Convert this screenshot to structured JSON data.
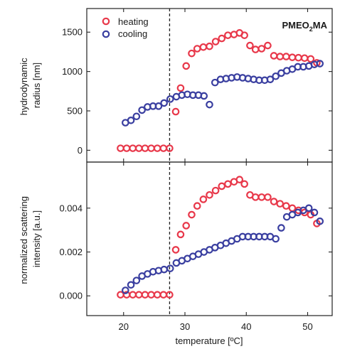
{
  "chart_data": [
    {
      "type": "scatter",
      "ylabel": [
        "hydrodynamic",
        "radius [nm]"
      ],
      "xlim": [
        14,
        54
      ],
      "ylim": [
        -150,
        1800
      ],
      "yticks": [
        0,
        500,
        1000,
        1500
      ],
      "ytick_labels": [
        "0",
        "500",
        "1000",
        "1500"
      ],
      "legend_location": "top-left",
      "annotation": {
        "prefix": "PMEO",
        "subscript": "2",
        "suffix": "MA"
      },
      "vline_x": 27.5,
      "series": [
        {
          "name": "heating",
          "color": "#e8384a",
          "x": [
            19.5,
            20.5,
            21.5,
            22.5,
            23.5,
            24.5,
            25.5,
            26.5,
            27.5,
            28.5,
            29.3,
            30.2,
            31.1,
            32.0,
            33.0,
            34.0,
            35.0,
            36.0,
            37.0,
            38.0,
            38.9,
            39.7,
            40.6,
            41.5,
            42.5,
            43.5,
            44.5,
            45.5,
            46.5,
            47.5,
            48.5,
            49.5,
            50.5,
            51.5
          ],
          "y": [
            25,
            25,
            25,
            25,
            25,
            25,
            25,
            25,
            25,
            490,
            790,
            1070,
            1230,
            1290,
            1310,
            1320,
            1380,
            1420,
            1460,
            1470,
            1490,
            1460,
            1330,
            1280,
            1290,
            1330,
            1200,
            1190,
            1190,
            1180,
            1175,
            1170,
            1160,
            1110
          ]
        },
        {
          "name": "cooling",
          "color": "#3a3fa0",
          "x": [
            20.3,
            21.2,
            22.1,
            23.0,
            23.9,
            24.8,
            25.7,
            26.6,
            27.6,
            28.6,
            29.5,
            30.4,
            31.3,
            32.2,
            33.1,
            34.0,
            34.9,
            35.8,
            36.7,
            37.6,
            38.5,
            39.4,
            40.3,
            41.2,
            42.1,
            43.0,
            43.9,
            44.8,
            45.7,
            46.6,
            47.5,
            48.4,
            49.3,
            50.2,
            51.1,
            52.0
          ],
          "y": [
            350,
            380,
            430,
            510,
            550,
            560,
            560,
            600,
            650,
            680,
            700,
            710,
            700,
            700,
            690,
            580,
            860,
            900,
            910,
            920,
            930,
            920,
            910,
            900,
            890,
            890,
            900,
            940,
            980,
            1010,
            1030,
            1060,
            1060,
            1070,
            1090,
            1100
          ]
        }
      ]
    },
    {
      "type": "scatter",
      "xlabel": "temperature [ºC]",
      "ylabel": [
        "normalized scattering",
        "intensity [a.u.]"
      ],
      "xlim": [
        14,
        54
      ],
      "ylim": [
        -0.0009,
        0.0061
      ],
      "xticks": [
        20,
        30,
        40,
        50
      ],
      "xtick_labels": [
        "20",
        "30",
        "40",
        "50"
      ],
      "yticks": [
        0.0,
        0.002,
        0.004
      ],
      "ytick_labels": [
        "0.000",
        "0.002",
        "0.004"
      ],
      "vline_x": 27.5,
      "series": [
        {
          "name": "heating",
          "color": "#e8384a",
          "x": [
            19.5,
            20.5,
            21.5,
            22.5,
            23.5,
            24.5,
            25.5,
            26.5,
            27.5,
            28.5,
            29.3,
            30.2,
            31.1,
            32.0,
            33.0,
            34.0,
            35.0,
            36.0,
            37.0,
            38.0,
            38.9,
            39.7,
            40.6,
            41.5,
            42.5,
            43.5,
            44.5,
            45.5,
            46.5,
            47.5,
            48.5,
            49.5,
            50.5,
            51.5
          ],
          "y": [
            5e-05,
            5e-05,
            5e-05,
            5e-05,
            5e-05,
            5e-05,
            5e-05,
            5e-05,
            5e-05,
            0.0021,
            0.0028,
            0.0032,
            0.0037,
            0.0041,
            0.0044,
            0.0046,
            0.0048,
            0.005,
            0.0051,
            0.0052,
            0.0053,
            0.0051,
            0.0046,
            0.0045,
            0.0045,
            0.0045,
            0.0043,
            0.0042,
            0.0041,
            0.004,
            0.0039,
            0.0038,
            0.0037,
            0.0033
          ]
        },
        {
          "name": "cooling",
          "color": "#3a3fa0",
          "x": [
            20.3,
            21.2,
            22.1,
            23.0,
            23.9,
            24.8,
            25.7,
            26.6,
            27.6,
            28.6,
            29.5,
            30.4,
            31.3,
            32.2,
            33.1,
            34.0,
            34.9,
            35.8,
            36.7,
            37.6,
            38.5,
            39.4,
            40.3,
            41.2,
            42.1,
            43.0,
            43.9,
            44.8,
            45.7,
            46.6,
            47.5,
            48.4,
            49.3,
            50.2,
            51.1,
            52.0
          ],
          "y": [
            0.00025,
            0.0005,
            0.0007,
            0.0009,
            0.001,
            0.0011,
            0.00115,
            0.0012,
            0.00125,
            0.0015,
            0.0016,
            0.0017,
            0.0018,
            0.0019,
            0.002,
            0.0021,
            0.0022,
            0.0023,
            0.0024,
            0.0025,
            0.0026,
            0.0027,
            0.0027,
            0.0027,
            0.0027,
            0.0027,
            0.0027,
            0.0026,
            0.0031,
            0.0036,
            0.0037,
            0.0038,
            0.0039,
            0.004,
            0.0038,
            0.0034
          ]
        }
      ]
    }
  ]
}
